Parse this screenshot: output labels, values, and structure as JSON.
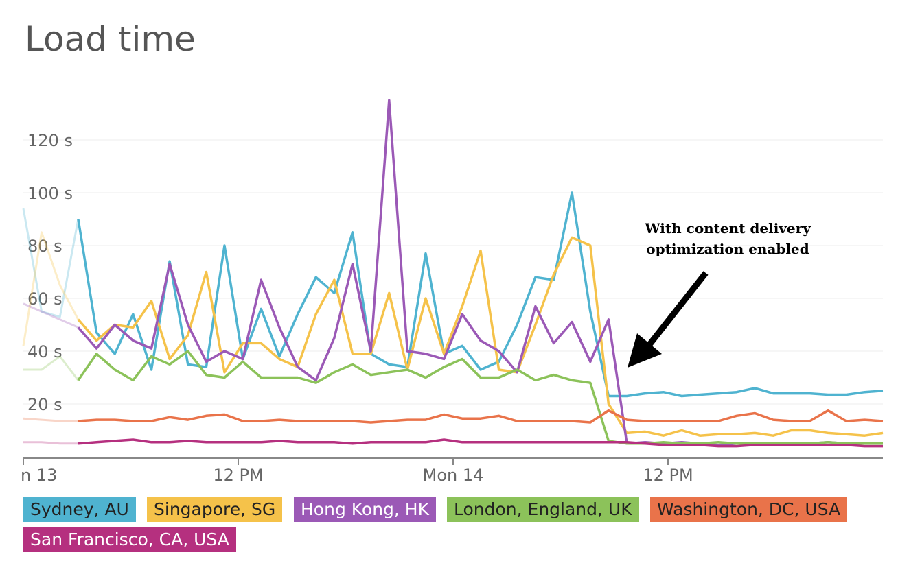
{
  "title": "Load time",
  "annotation": {
    "line1": "With content delivery",
    "line2": "optimization enabled"
  },
  "chart_data": {
    "type": "line",
    "title": "Load time",
    "xlabel": "",
    "ylabel": "",
    "y_unit": "s",
    "ylim": [
      0,
      140
    ],
    "yticks": [
      20,
      40,
      60,
      80,
      100,
      120
    ],
    "ytick_labels": [
      "20 s",
      "40 s",
      "60 s",
      "80 s",
      "100 s",
      "120 s"
    ],
    "x_range": [
      0,
      40
    ],
    "xticks": [
      {
        "x": 0,
        "label": "n 13"
      },
      {
        "x": 10.0,
        "label": "12 PM"
      },
      {
        "x": 20.0,
        "label": "Mon 14"
      },
      {
        "x": 30.0,
        "label": "12 PM"
      }
    ],
    "grid": true,
    "legend_position": "bottom",
    "faded_until_x": 3,
    "series": [
      {
        "name": "Sydney, AU",
        "color": "#4fb3d0",
        "text_color": "#222222",
        "values": [
          94,
          55,
          53,
          90,
          47,
          39,
          54,
          33,
          74,
          35,
          34,
          80,
          37,
          56,
          38,
          54,
          68,
          62,
          85,
          39,
          35,
          34,
          77,
          39,
          42,
          33,
          36,
          50,
          68,
          67,
          100,
          55,
          23,
          23,
          24,
          24.5,
          23,
          23.5,
          24,
          24.5,
          26,
          24,
          24,
          24,
          23.5,
          23.5,
          24.5,
          25
        ]
      },
      {
        "name": "Singapore, SG",
        "color": "#f5c24a",
        "text_color": "#222222",
        "values": [
          42,
          85,
          65,
          52,
          44,
          50,
          49,
          59,
          37,
          46,
          70,
          32,
          43,
          43,
          37,
          34,
          54,
          67,
          39,
          39,
          62,
          33,
          60,
          39,
          57,
          78,
          33,
          32,
          50,
          69,
          83,
          80,
          20,
          9,
          9.5,
          8,
          10,
          8,
          8.5,
          8.5,
          9,
          8,
          10,
          10,
          9,
          8.5,
          8,
          9
        ]
      },
      {
        "name": "Hong Kong, HK",
        "color": "#9b59b6",
        "text_color": "#ffffff",
        "values": [
          58,
          55,
          52,
          49,
          41,
          50,
          44,
          41,
          73,
          50,
          36,
          40,
          37,
          67,
          49,
          34,
          29,
          45,
          73,
          40,
          135,
          40,
          39,
          37,
          54,
          44,
          40,
          32,
          57,
          43,
          51,
          36,
          52,
          5,
          5.5,
          5,
          5.5,
          5,
          4.5,
          5,
          5,
          5,
          5,
          5,
          5.5,
          5,
          5,
          5
        ]
      },
      {
        "name": "London, England, UK",
        "color": "#8cc25a",
        "text_color": "#222222",
        "values": [
          33,
          33,
          38,
          29,
          39,
          33,
          29,
          38,
          35,
          40,
          31,
          30,
          36,
          30,
          30,
          30,
          28,
          32,
          35,
          31,
          32,
          33,
          30,
          34,
          37,
          30,
          30,
          33,
          29,
          31,
          29,
          28,
          6,
          5,
          5,
          5.5,
          5,
          5,
          5.5,
          5,
          5,
          5,
          5,
          5,
          5.5,
          5,
          5,
          5
        ]
      },
      {
        "name": "Washington, DC, USA",
        "color": "#e9734a",
        "text_color": "#222222",
        "values": [
          14.5,
          14,
          13.5,
          13.5,
          14,
          14,
          13.5,
          13.5,
          15,
          14,
          15.5,
          16,
          13.5,
          13.5,
          14,
          13.5,
          13.5,
          13.5,
          13.5,
          13,
          13.5,
          14,
          14,
          16,
          14.5,
          14.5,
          15.5,
          13.5,
          13.5,
          13.5,
          13.5,
          13,
          17.5,
          14,
          13.5,
          13.5,
          13.5,
          13.5,
          13.5,
          15.5,
          16.5,
          14,
          13.5,
          13.5,
          17.5,
          13.5,
          14,
          13.5
        ]
      },
      {
        "name": "San Francisco, CA, USA",
        "color": "#b5307f",
        "text_color": "#ffffff",
        "values": [
          5.5,
          5.5,
          5,
          5,
          5.5,
          6,
          6.5,
          5.5,
          5.5,
          6,
          5.5,
          5.5,
          5.5,
          5.5,
          6,
          5.5,
          5.5,
          5.5,
          5,
          5.5,
          5.5,
          5.5,
          5.5,
          6.5,
          5.5,
          5.5,
          5.5,
          5.5,
          5.5,
          5.5,
          5.5,
          5.5,
          5.5,
          5.5,
          5,
          4.5,
          4.5,
          4.5,
          4,
          4,
          4.5,
          4.5,
          4.5,
          4.5,
          4.5,
          4.5,
          4,
          4
        ]
      }
    ]
  }
}
